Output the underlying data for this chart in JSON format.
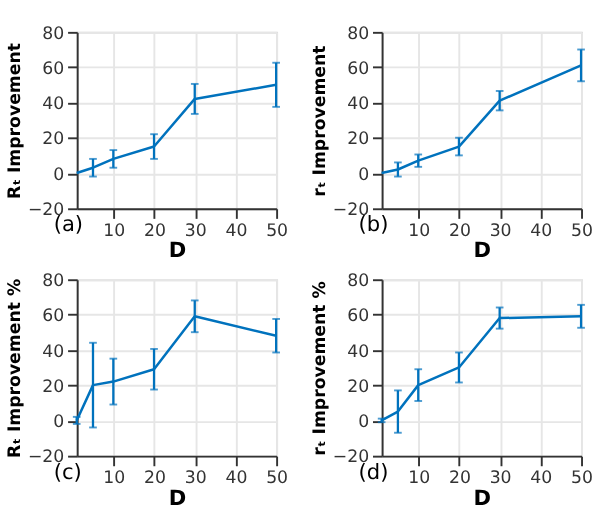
{
  "chart_data": [
    {
      "type": "line",
      "xlabel": "D",
      "ylabel": "Rₜ Improvement",
      "annotations": [
        "(a)"
      ],
      "x": [
        1,
        5,
        10,
        20,
        30,
        50
      ],
      "xlim": [
        1,
        50
      ],
      "xticks": [
        10,
        20,
        30,
        40,
        50
      ],
      "ylim": [
        -20,
        80
      ],
      "yticks": [
        -20,
        0,
        20,
        40,
        60,
        80
      ],
      "grid": true,
      "marker": "none",
      "line_style": "solid",
      "series": [
        {
          "color": "#0072bd",
          "values": [
            0,
            3,
            8,
            15,
            42,
            50
          ],
          "errors": [
            null,
            5,
            5,
            7,
            8.5,
            12.5
          ]
        }
      ]
    },
    {
      "type": "line",
      "xlabel": "D",
      "ylabel": "rₜ Improvement",
      "annotations": [
        "(b)"
      ],
      "x": [
        1,
        5,
        10,
        20,
        30,
        50
      ],
      "xlim": [
        1,
        50
      ],
      "xticks": [
        10,
        20,
        30,
        40,
        50
      ],
      "ylim": [
        -20,
        80
      ],
      "yticks": [
        -20,
        0,
        20,
        40,
        60,
        80
      ],
      "grid": true,
      "marker": "none",
      "line_style": "solid",
      "series": [
        {
          "color": "#0072bd",
          "values": [
            0,
            2,
            7,
            15,
            41,
            61
          ],
          "errors": [
            null,
            4,
            3.5,
            5,
            5.5,
            9
          ]
        }
      ]
    },
    {
      "type": "line",
      "xlabel": "D",
      "ylabel": "Rₜ Improvement %",
      "annotations": [
        "(c)"
      ],
      "x": [
        1,
        5,
        10,
        20,
        30,
        50
      ],
      "xlim": [
        1,
        50
      ],
      "xticks": [
        10,
        20,
        30,
        40,
        50
      ],
      "ylim": [
        -20,
        80
      ],
      "yticks": [
        -20,
        0,
        20,
        40,
        60,
        80
      ],
      "grid": true,
      "marker": "none",
      "line_style": "solid",
      "series": [
        {
          "color": "#0072bd",
          "values": [
            0,
            20,
            22,
            29,
            59,
            48
          ],
          "errors": [
            2,
            24,
            13,
            11.5,
            9,
            9.5
          ]
        }
      ]
    },
    {
      "type": "line",
      "xlabel": "D",
      "ylabel": "rₜ Improvement %",
      "annotations": [
        "(d)"
      ],
      "x": [
        1,
        5,
        10,
        20,
        30,
        50
      ],
      "xlim": [
        1,
        50
      ],
      "xticks": [
        10,
        20,
        30,
        40,
        50
      ],
      "ylim": [
        -20,
        80
      ],
      "yticks": [
        -20,
        0,
        20,
        40,
        60,
        80
      ],
      "grid": true,
      "marker": "none",
      "line_style": "solid",
      "series": [
        {
          "color": "#0072bd",
          "values": [
            0,
            5,
            20,
            30,
            58,
            59
          ],
          "errors": [
            1,
            12,
            9,
            8.5,
            6,
            6.5
          ]
        }
      ]
    }
  ]
}
